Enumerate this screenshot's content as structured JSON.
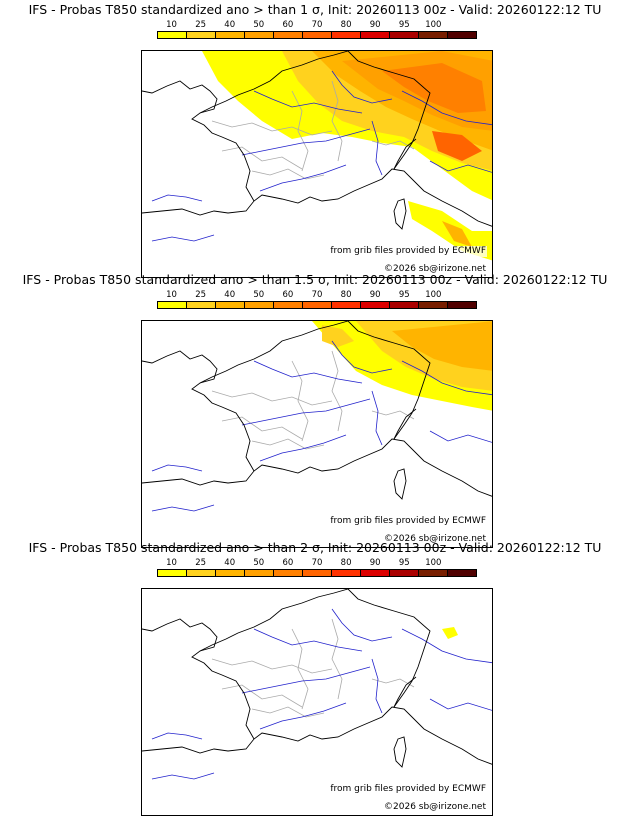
{
  "colorbar": {
    "ticks": [
      "10",
      "25",
      "40",
      "50",
      "60",
      "70",
      "80",
      "90",
      "95",
      "100"
    ],
    "colors": [
      "#ffff00",
      "#ffd21e",
      "#ffb400",
      "#ffa000",
      "#ff8000",
      "#ff6400",
      "#ff3200",
      "#dc0000",
      "#aa0000",
      "#781e00",
      "#500000"
    ]
  },
  "panels": [
    {
      "title": "IFS - Probas T850  standardized ano > than 1 σ, Init: 20260113 00z - Valid: 20260122:12 TU",
      "level": "high"
    },
    {
      "title": "IFS - Probas T850  standardized ano > than 1.5 σ, Init: 20260113 00z - Valid: 20260122:12 TU",
      "level": "medium"
    },
    {
      "title": "IFS - Probas T850  standardized ano > than 2 σ, Init: 20260113 00z - Valid: 20260122:12 TU",
      "level": "low"
    }
  ],
  "credits": {
    "source": "from grib files provided by ECMWF",
    "copyright": "©2026 sb@irizone.net"
  }
}
